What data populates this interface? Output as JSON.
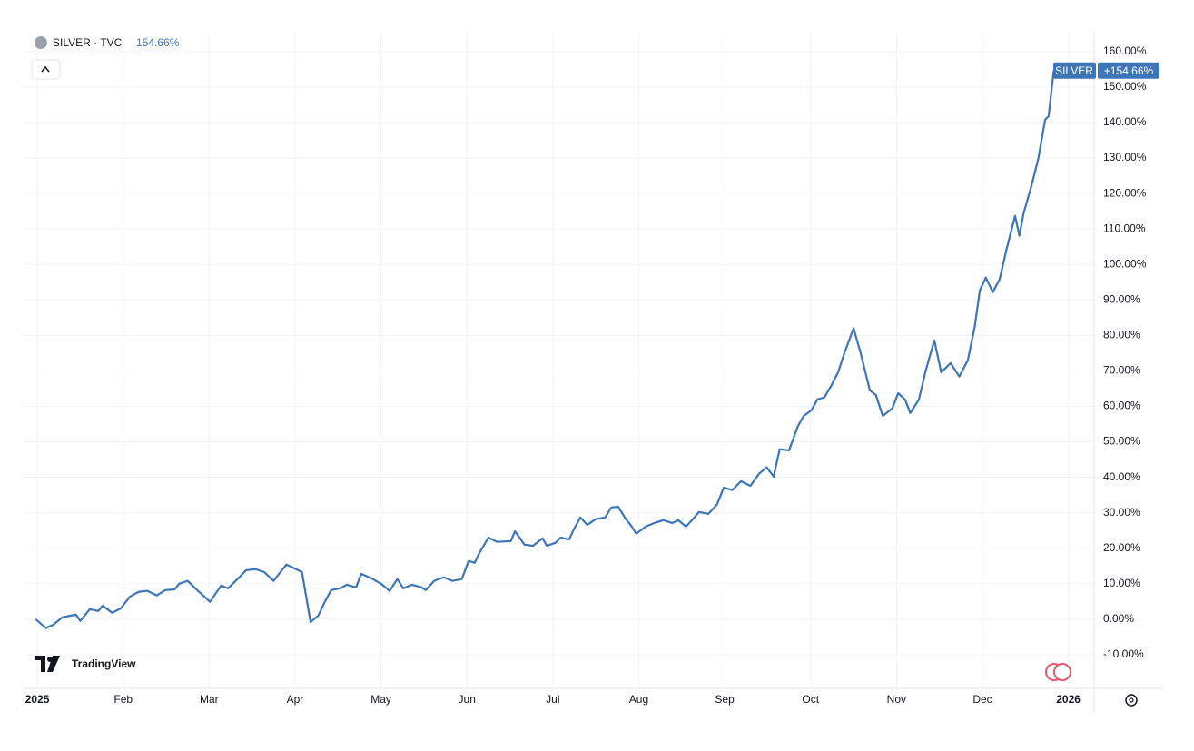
{
  "chart_data": {
    "type": "line",
    "legend_title": "SILVER · TVC",
    "legend_value": "154.66%",
    "price_tag": "+154.66%",
    "watermark": "TradingView",
    "series": [
      {
        "name": "SILVER",
        "color": "#3d76b8",
        "x": [
          -0.02,
          0.1,
          0.19,
          0.29,
          0.45,
          0.5,
          0.61,
          0.71,
          0.76,
          0.87,
          0.97,
          1.08,
          1.18,
          1.28,
          1.39,
          1.49,
          1.6,
          1.65,
          1.75,
          1.86,
          1.93,
          2.01,
          2.14,
          2.22,
          2.33,
          2.43,
          2.54,
          2.64,
          2.75,
          2.83,
          2.9,
          3.01,
          3.08,
          3.18,
          3.27,
          3.35,
          3.42,
          3.53,
          3.6,
          3.71,
          3.77,
          3.89,
          4.0,
          4.1,
          4.19,
          4.26,
          4.36,
          4.47,
          4.52,
          4.62,
          4.73,
          4.83,
          4.94,
          5.02,
          5.09,
          5.15,
          5.25,
          5.35,
          5.51,
          5.56,
          5.67,
          5.77,
          5.88,
          5.93,
          6.03,
          6.09,
          6.19,
          6.24,
          6.32,
          6.4,
          6.5,
          6.61,
          6.68,
          6.76,
          6.85,
          6.92,
          6.97,
          7.08,
          7.18,
          7.29,
          7.39,
          7.46,
          7.55,
          7.63,
          7.7,
          7.81,
          7.91,
          7.99,
          8.09,
          8.19,
          8.3,
          8.4,
          8.49,
          8.57,
          8.64,
          8.75,
          8.85,
          8.92,
          9.01,
          9.08,
          9.16,
          9.24,
          9.32,
          9.39,
          9.5,
          9.58,
          9.69,
          9.76,
          9.84,
          9.95,
          10.02,
          10.1,
          10.16,
          10.26,
          10.34,
          10.44,
          10.52,
          10.63,
          10.73,
          10.83,
          10.91,
          10.97,
          11.04,
          11.12,
          11.2,
          11.28,
          11.38,
          11.43,
          11.48,
          11.57,
          11.65,
          11.73,
          11.77,
          11.83
        ],
        "values": [
          0,
          -2.5,
          -1.5,
          0.5,
          1.3,
          -0.5,
          2.8,
          2.3,
          3.8,
          1.8,
          3,
          6.4,
          7.7,
          8,
          6.7,
          8.2,
          8.4,
          10,
          10.8,
          8.2,
          6.7,
          4.9,
          9.5,
          8.7,
          11.3,
          13.8,
          14.1,
          13.3,
          10.8,
          13.3,
          15.4,
          14.1,
          13.3,
          -0.8,
          1,
          5.1,
          8.2,
          8.7,
          9.7,
          9,
          12.8,
          11.5,
          10,
          8,
          11.3,
          8.7,
          9.7,
          9,
          8.2,
          10.8,
          11.8,
          10.8,
          11.3,
          16.4,
          15.9,
          18.9,
          23,
          21.8,
          22,
          24.8,
          21,
          20.7,
          22.8,
          20.7,
          21.5,
          23,
          22.5,
          25.1,
          28.7,
          26.6,
          28.2,
          28.7,
          31.5,
          31.7,
          28.2,
          26.1,
          24.1,
          26.1,
          27.1,
          27.9,
          27.1,
          27.9,
          26.1,
          28.2,
          30.2,
          29.7,
          32.3,
          37.1,
          36.4,
          38.9,
          37.6,
          41,
          42.8,
          40.2,
          47.9,
          47.6,
          54.3,
          57.3,
          58.9,
          62,
          62.5,
          65.8,
          69.6,
          74.8,
          82,
          75.3,
          64.5,
          63.2,
          57.3,
          59.4,
          63.7,
          61.9,
          58.1,
          61.9,
          70.1,
          78.6,
          69.6,
          72.2,
          68.4,
          73,
          82.4,
          92.7,
          96.3,
          92.2,
          95.8,
          104.2,
          113.7,
          108.1,
          114.5,
          122.1,
          129.8,
          140.8,
          141.8,
          154.66
        ]
      }
    ],
    "xlim": [
      -0.17,
      12.3
    ],
    "xticks": [
      {
        "value": 0,
        "label": "2025"
      },
      {
        "value": 1,
        "label": "Feb"
      },
      {
        "value": 2,
        "label": "Mar"
      },
      {
        "value": 3,
        "label": "Apr"
      },
      {
        "value": 4,
        "label": "May"
      },
      {
        "value": 5,
        "label": "Jun"
      },
      {
        "value": 6,
        "label": "Jul"
      },
      {
        "value": 7,
        "label": "Aug"
      },
      {
        "value": 8,
        "label": "Sep"
      },
      {
        "value": 9,
        "label": "Oct"
      },
      {
        "value": 10,
        "label": "Nov"
      },
      {
        "value": 11,
        "label": "Dec"
      },
      {
        "value": 12,
        "label": "2026"
      }
    ],
    "ylim": [
      -19.5,
      165.6
    ],
    "yticks": [
      {
        "value": -10,
        "label": "-10.00%"
      },
      {
        "value": 0,
        "label": "0.00%"
      },
      {
        "value": 10,
        "label": "10.00%"
      },
      {
        "value": 20,
        "label": "20.00%"
      },
      {
        "value": 30,
        "label": "30.00%"
      },
      {
        "value": 40,
        "label": "40.00%"
      },
      {
        "value": 50,
        "label": "50.00%"
      },
      {
        "value": 60,
        "label": "60.00%"
      },
      {
        "value": 70,
        "label": "70.00%"
      },
      {
        "value": 80,
        "label": "80.00%"
      },
      {
        "value": 90,
        "label": "90.00%"
      },
      {
        "value": 100,
        "label": "100.00%"
      },
      {
        "value": 110,
        "label": "110.00%"
      },
      {
        "value": 120,
        "label": "120.00%"
      },
      {
        "value": 130,
        "label": "130.00%"
      },
      {
        "value": 140,
        "label": "140.00%"
      },
      {
        "value": 150,
        "label": "150.00%"
      },
      {
        "value": 160,
        "label": "160.00%"
      }
    ],
    "grid": true
  }
}
